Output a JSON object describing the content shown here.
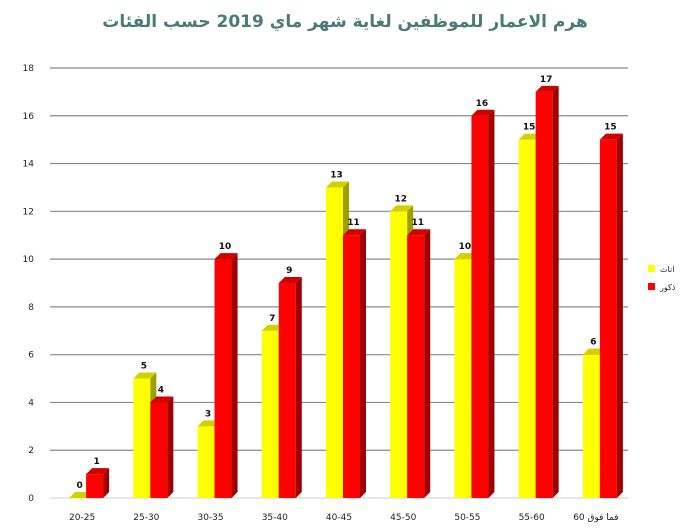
{
  "chart_data": {
    "type": "bar",
    "title": "هرم الاعمار للموظفين لغاية شهر ماي 2019 حسب الفئات",
    "categories": [
      "20-25",
      "25-30",
      "30-35",
      "35-40",
      "40-45",
      "45-50",
      "50-55",
      "55-60",
      "60 فما فوق"
    ],
    "series": [
      {
        "name": "اناث",
        "color": "#ffff00",
        "values": [
          0,
          5,
          3,
          7,
          13,
          12,
          10,
          15,
          6
        ]
      },
      {
        "name": "ذكور",
        "color": "#ff0000",
        "values": [
          1,
          4,
          10,
          9,
          11,
          11,
          16,
          17,
          15
        ]
      }
    ],
    "y_ticks": [
      "0",
      "2",
      "4",
      "6",
      "8",
      "10",
      "12",
      "14",
      "16",
      "18"
    ],
    "ylim": [
      0,
      18
    ],
    "grid": true,
    "legend_position": "right",
    "bar_3d": true
  }
}
